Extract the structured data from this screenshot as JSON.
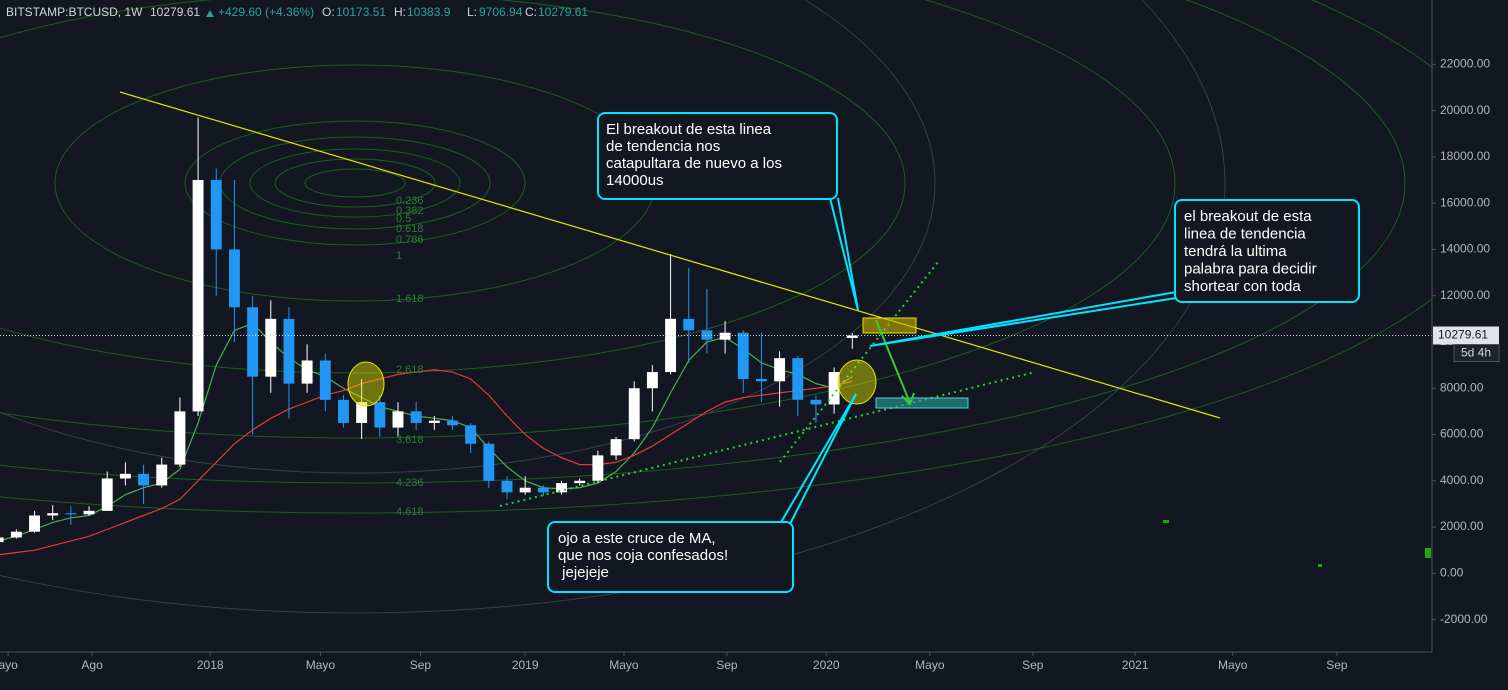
{
  "chart_data": {
    "type": "candlestick",
    "symbol": "BITSTAMP:BTCUSD, 1W",
    "change": "+429.60 (+4.36%)",
    "ohlc_labels": [
      "O:",
      "H:",
      "L:",
      "C:"
    ],
    "up_color": "#ffffff",
    "down_color": "#2196f3",
    "candles": {
      "x": [
        0,
        3,
        6,
        9,
        12,
        15,
        18,
        21,
        24,
        27,
        30,
        33,
        36,
        39,
        42,
        45,
        48,
        51,
        54,
        57,
        60,
        63,
        66,
        69,
        72,
        75,
        78,
        81,
        84,
        87,
        90,
        93,
        96,
        99,
        102,
        105,
        108,
        111,
        114,
        117,
        120,
        123,
        126,
        129,
        132,
        135,
        138,
        141
      ],
      "open": [
        1350,
        1550,
        1800,
        2500,
        2600,
        2550,
        2700,
        4100,
        4300,
        3800,
        4700,
        7000,
        17000,
        14000,
        11500,
        8500,
        11000,
        8200,
        9200,
        7500,
        6500,
        7400,
        6300,
        7000,
        6500,
        6600,
        6400,
        5600,
        4000,
        3500,
        3700,
        3500,
        3900,
        4000,
        5100,
        5800,
        8000,
        8700,
        11000,
        10500,
        10100,
        10400,
        8400,
        8300,
        9300,
        7500,
        7300,
        10173.51
      ],
      "high": [
        1600,
        1900,
        2700,
        2950,
        2900,
        2900,
        4400,
        4800,
        4700,
        5000,
        7600,
        19700,
        17500,
        17000,
        12000,
        11800,
        11500,
        9900,
        9500,
        7700,
        8400,
        7700,
        7400,
        7400,
        6800,
        6800,
        6500,
        5700,
        4200,
        4200,
        3800,
        4000,
        4100,
        5300,
        5900,
        8300,
        9000,
        13800,
        13200,
        12300,
        10900,
        10500,
        10400,
        9600,
        9400,
        7700,
        8900,
        10383.9
      ],
      "low": [
        1300,
        1500,
        1750,
        2300,
        2100,
        2500,
        2700,
        3800,
        3000,
        3700,
        4600,
        6800,
        12000,
        10000,
        6000,
        7800,
        6700,
        7800,
        7000,
        6300,
        5800,
        5900,
        5900,
        6200,
        6200,
        6200,
        5200,
        3700,
        3200,
        3400,
        3350,
        3400,
        3800,
        3900,
        4900,
        5700,
        7000,
        8600,
        9100,
        9500,
        9500,
        7800,
        7400,
        7200,
        6800,
        6500,
        6900,
        9706.94
      ],
      "close": [
        1550,
        1800,
        2500,
        2600,
        2550,
        2700,
        4100,
        4300,
        3800,
        4700,
        7000,
        17000,
        14000,
        11500,
        8500,
        11000,
        8200,
        9200,
        7500,
        6500,
        7400,
        6300,
        7000,
        6500,
        6600,
        6400,
        5600,
        4000,
        3500,
        3700,
        3500,
        3900,
        4000,
        5100,
        5800,
        8000,
        8700,
        11000,
        10500,
        10100,
        10400,
        8400,
        8300,
        9300,
        7500,
        7300,
        8700,
        10279.61
      ]
    },
    "series": [
      {
        "color": "#4caf50",
        "values": [
          1400,
          1600,
          1900,
          2200,
          2400,
          2500,
          2900,
          3400,
          3700,
          3900,
          4500,
          6500,
          9000,
          10500,
          10800,
          10000,
          9300,
          8800,
          8500,
          8000,
          7600,
          7200,
          7000,
          6800,
          6700,
          6600,
          6300,
          5400,
          4600,
          4000,
          3700,
          3650,
          3700,
          3900,
          4400,
          5200,
          6300,
          7800,
          9200,
          10000,
          10200,
          9700,
          9100,
          8800,
          8600,
          8200,
          8000,
          8500
        ]
      },
      {
        "color": "#e53935",
        "values": [
          800,
          900,
          1000,
          1200,
          1400,
          1600,
          1900,
          2200,
          2500,
          2800,
          3200,
          4000,
          4800,
          5600,
          6200,
          6700,
          7100,
          7400,
          7700,
          7900,
          8200,
          8400,
          8600,
          8700,
          8800,
          8700,
          8400,
          7700,
          6800,
          6000,
          5400,
          5000,
          4700,
          4700,
          4800,
          5100,
          5500,
          6000,
          6500,
          7000,
          7400,
          7600,
          7700,
          7800,
          7900,
          8000,
          8100,
          8300
        ]
      }
    ],
    "xlim": [
      0.3,
      236.7
    ],
    "xticks": [
      {
        "value": 1.65,
        "label": "ayo"
      },
      {
        "value": 15.5,
        "label": "Ago"
      },
      {
        "value": 35.0,
        "label": "2018"
      },
      {
        "value": 53.2,
        "label": "Mayo"
      },
      {
        "value": 69.7,
        "label": "Sep"
      },
      {
        "value": 87.0,
        "label": "2019"
      },
      {
        "value": 103.3,
        "label": "Mayo"
      },
      {
        "value": 120.3,
        "label": "Sep"
      },
      {
        "value": 136.7,
        "label": "2020"
      },
      {
        "value": 153.8,
        "label": "Mayo"
      },
      {
        "value": 170.8,
        "label": "Sep"
      },
      {
        "value": 187.7,
        "label": "2021"
      },
      {
        "value": 203.8,
        "label": "Mayo"
      },
      {
        "value": 221.0,
        "label": "Sep"
      }
    ],
    "ylim": [
      -3400,
      23700
    ],
    "yticks": [
      {
        "value": -2000,
        "label": "-2000.00"
      },
      {
        "value": 0,
        "label": "0.00"
      },
      {
        "value": 2000,
        "label": "2000.00"
      },
      {
        "value": 4000,
        "label": "4000.00"
      },
      {
        "value": 6000,
        "label": "6000.00"
      },
      {
        "value": 8000,
        "label": "8000.00"
      },
      {
        "value": 10000,
        "label": "10000.00"
      },
      {
        "value": 12000,
        "label": "12000.00"
      },
      {
        "value": 14000,
        "label": "14000.00"
      },
      {
        "value": 16000,
        "label": "16000.00"
      },
      {
        "value": 18000,
        "label": "18000.00"
      },
      {
        "value": 20000,
        "label": "20000.00"
      },
      {
        "value": 22000,
        "label": "22000.00"
      }
    ],
    "countdown": "5d 4h"
  },
  "annotations": {
    "fib_levels": [
      0.236,
      0.382,
      0.5,
      0.618,
      0.786,
      1,
      1.618,
      2.618,
      3.618,
      4.236,
      4.618
    ],
    "callouts": [
      [
        "El breakout de esta linea",
        "de tendencia nos",
        "catapultara de nuevo a los",
        "14000us"
      ],
      [
        "el breakout de esta",
        "linea de tendencia",
        "tendrá la ultima",
        "palabra para decidir",
        "shortear con toda"
      ],
      [
        "ojo a este cruce de MA,",
        "que nos coja confesados!",
        " jejejeje"
      ]
    ]
  }
}
